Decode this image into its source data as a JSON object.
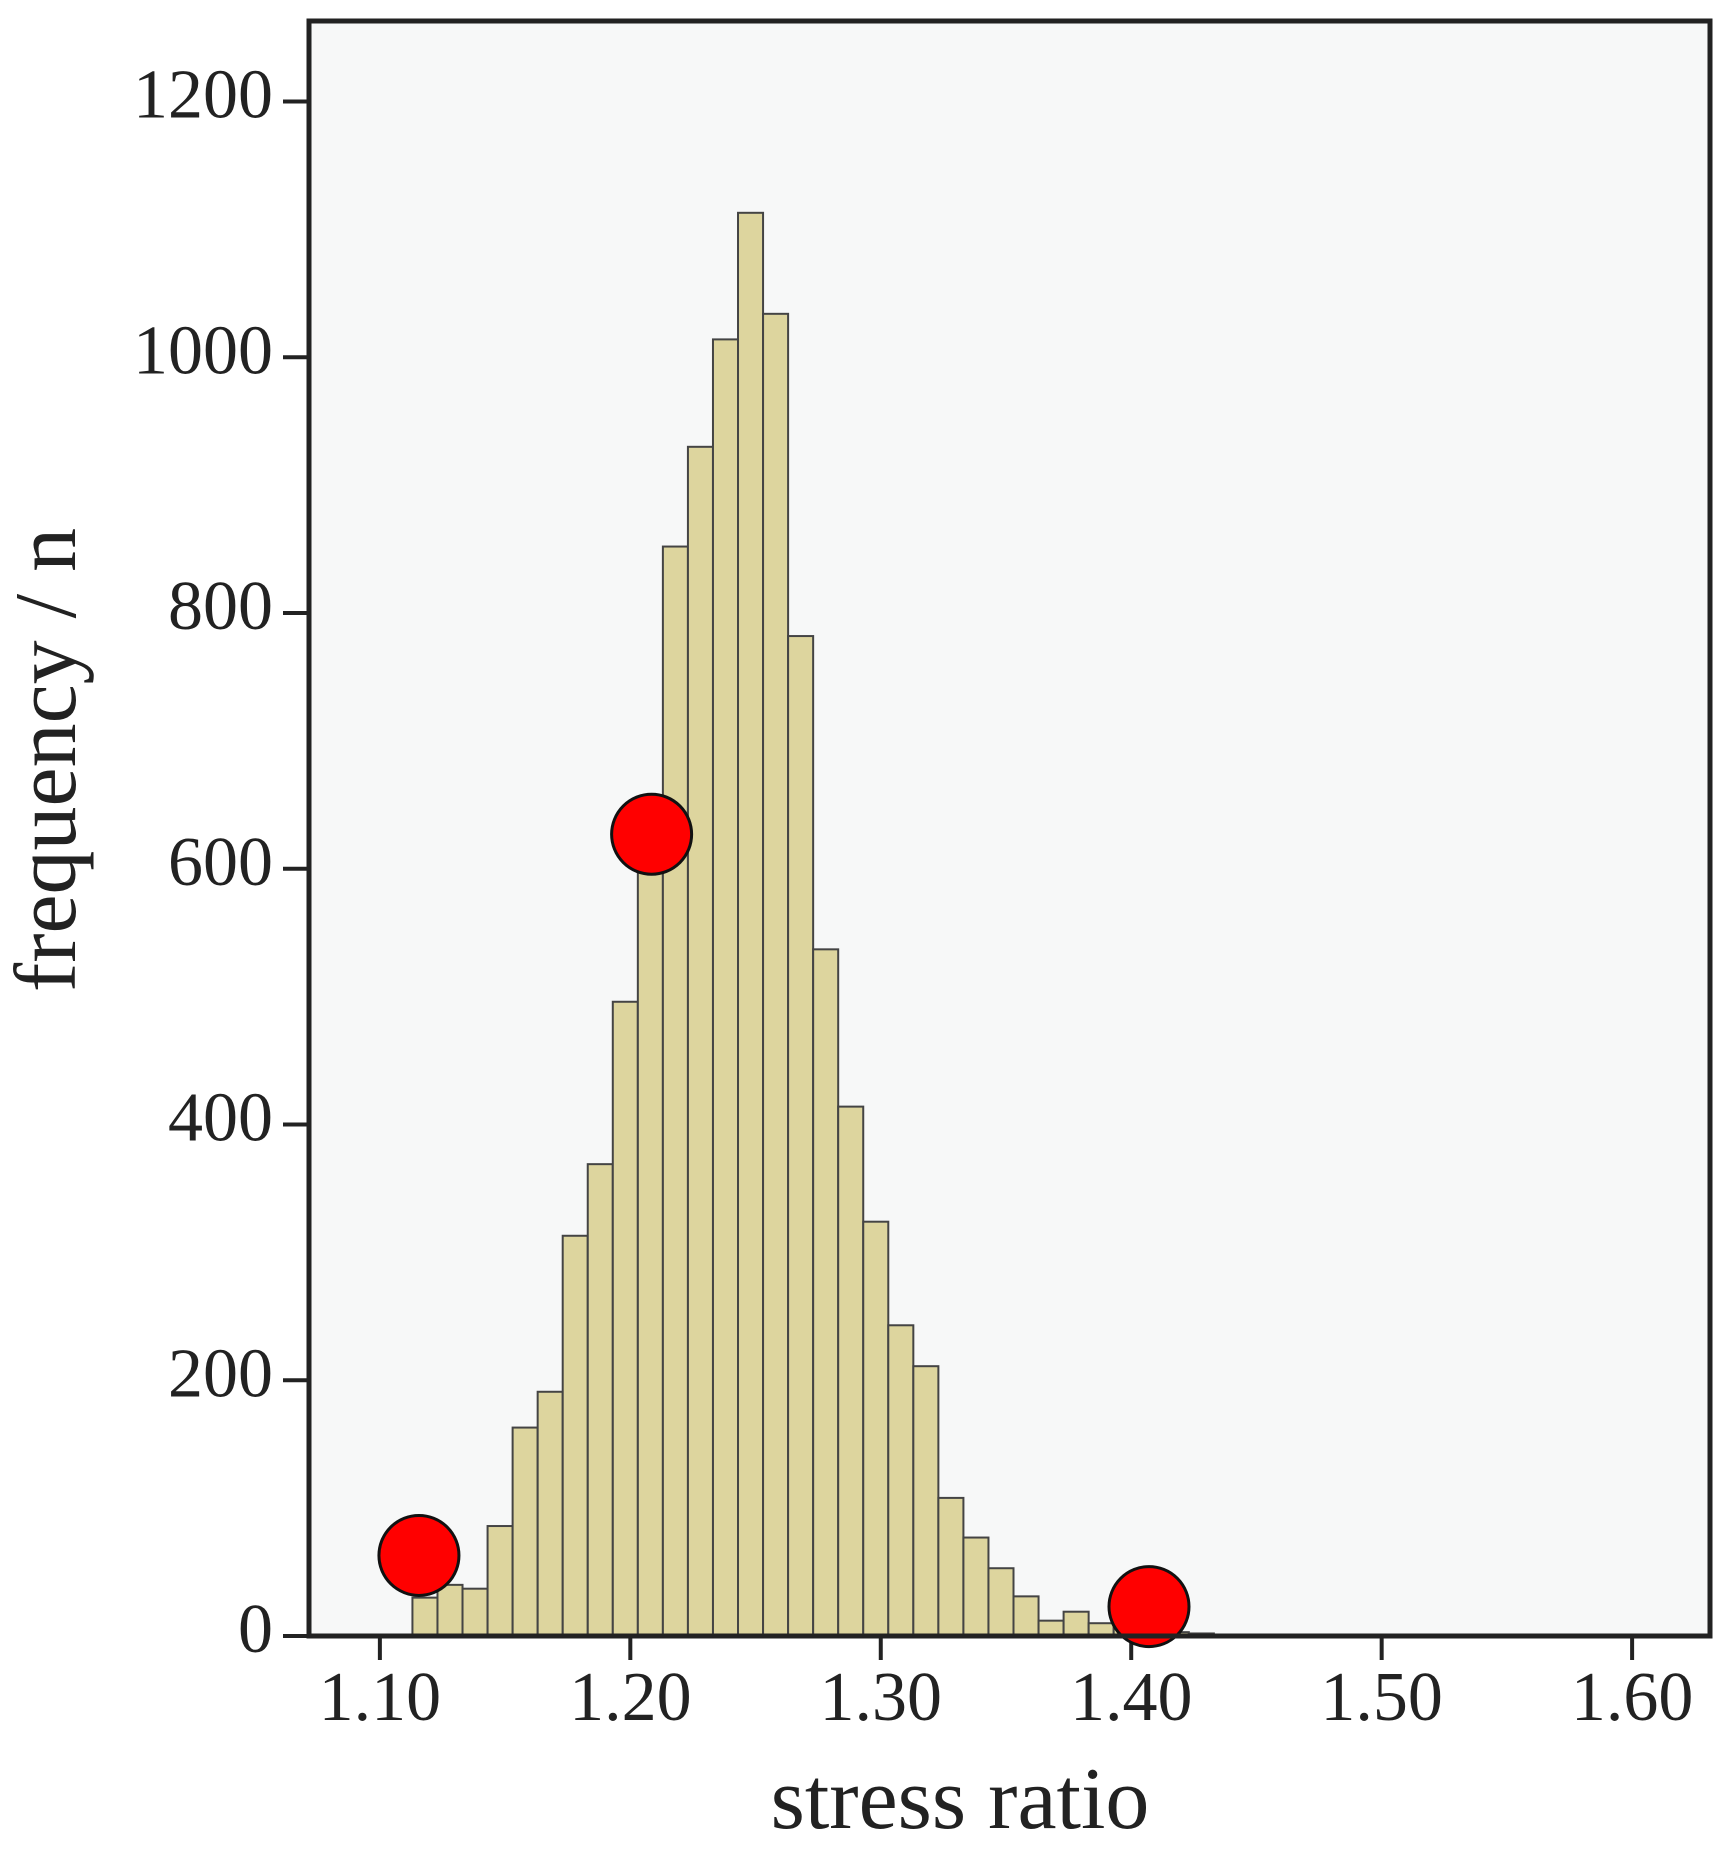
{
  "chart_data": {
    "type": "histogram",
    "xlabel": "stress ratio",
    "ylabel": "frequency / n",
    "bins": [
      1.113,
      1.123,
      1.133,
      1.143,
      1.153,
      1.163,
      1.173,
      1.183,
      1.193,
      1.203,
      1.213,
      1.223,
      1.233,
      1.243,
      1.253,
      1.263,
      1.273,
      1.283,
      1.293,
      1.303,
      1.313,
      1.323,
      1.333,
      1.343,
      1.353,
      1.363,
      1.373,
      1.383,
      1.393,
      1.403,
      1.413,
      1.423,
      1.433,
      1.443
    ],
    "values": [
      30,
      40,
      37,
      86,
      163,
      191,
      313,
      369,
      496,
      641,
      852,
      930,
      1014,
      1113,
      1034,
      782,
      537,
      414,
      324,
      243,
      211,
      108,
      77,
      53,
      31,
      12,
      19,
      10,
      6,
      4,
      3,
      2,
      1
    ],
    "color": "#ddd59e",
    "markers": {
      "x": [
        1.1156,
        1.2085,
        1.4071
      ],
      "y": [
        63,
        627,
        23
      ],
      "color": "#ff0000"
    },
    "xlim": [
      1.0717,
      1.6311
    ],
    "ylim": [
      0,
      1263
    ],
    "xticks": [
      {
        "value": 1.1,
        "label": "1.10"
      },
      {
        "value": 1.2,
        "label": "1.20"
      },
      {
        "value": 1.3,
        "label": "1.30"
      },
      {
        "value": 1.4,
        "label": "1.40"
      },
      {
        "value": 1.5,
        "label": "1.50"
      },
      {
        "value": 1.6,
        "label": "1.60"
      }
    ],
    "yticks": [
      0,
      200,
      400,
      600,
      800,
      1000,
      1200
    ],
    "grid": false
  }
}
